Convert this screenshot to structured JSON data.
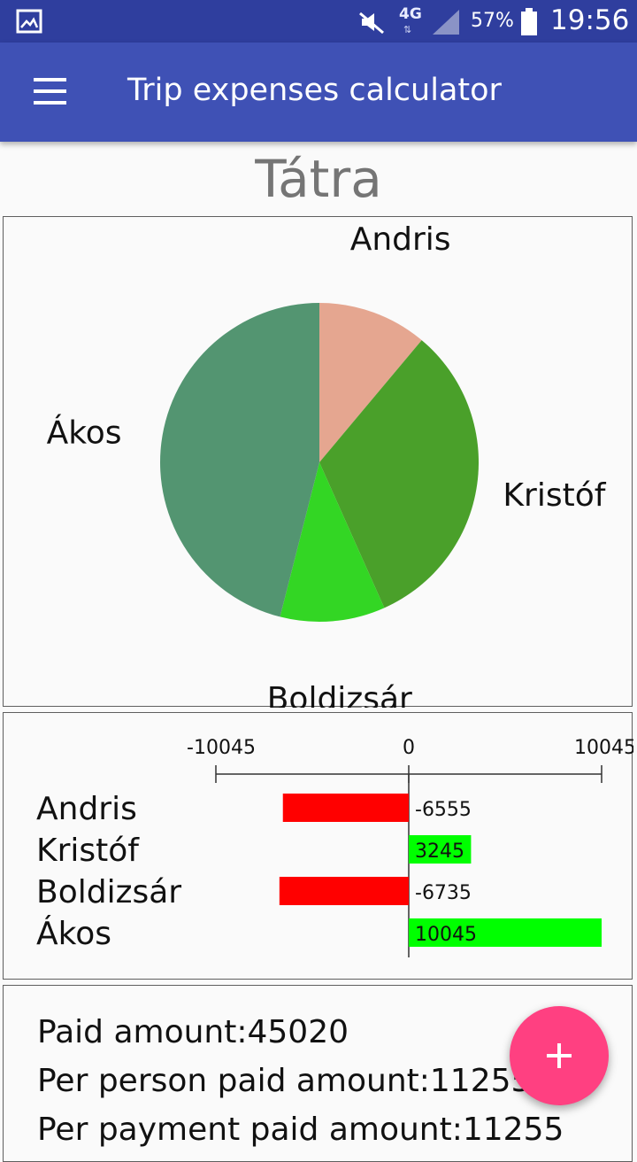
{
  "status_bar": {
    "icons": [
      "gallery-icon",
      "mute-icon",
      "signal-icon",
      "battery-icon"
    ],
    "network": "4G",
    "battery": "57%",
    "time": "19:56"
  },
  "app_bar": {
    "title": "Trip expenses calculator",
    "menu_icon": "hamburger-menu-icon"
  },
  "trip": {
    "name": "Tátra"
  },
  "chart_data": [
    {
      "type": "pie",
      "labels": [
        "Andris",
        "Kristóf",
        "Boldizsár",
        "Ákos"
      ],
      "values": [
        5000,
        14500,
        4800,
        20720
      ],
      "colors": [
        "#e5a690",
        "#4aa02a",
        "#33d624",
        "#539571"
      ]
    },
    {
      "type": "bar",
      "orientation": "horizontal",
      "categories": [
        "Andris",
        "Kristóf",
        "Boldizsár",
        "Ákos"
      ],
      "values": [
        -6555,
        3245,
        -6735,
        10045
      ],
      "value_labels": [
        "-6555",
        "3245",
        "-6735",
        "10045"
      ],
      "xlim": [
        -10045,
        10045
      ],
      "ticks": [
        "-10045",
        "0",
        "10045"
      ],
      "negative_color": "#ff0000",
      "positive_color": "#00ff00"
    }
  ],
  "stats": {
    "paid": "Paid amount:45020",
    "per_person": "Per person paid amount:11255",
    "per_payment": "Per payment paid amount:11255"
  },
  "fab": {
    "icon": "plus-icon"
  }
}
